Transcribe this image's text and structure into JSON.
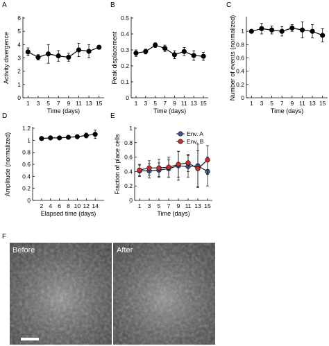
{
  "chart_data": [
    {
      "panel": "A",
      "type": "line",
      "ylabel": "Activity divergence",
      "xlabel": "Time (days)",
      "ylim": [
        0,
        6
      ],
      "yticks": [
        "0",
        "1",
        "2",
        "3",
        "4",
        "5",
        "6"
      ],
      "xlim": [
        0,
        16
      ],
      "xticks": [
        "1",
        "3",
        "5",
        "7",
        "9",
        "11",
        "13",
        "15"
      ],
      "x": [
        1,
        3,
        5,
        7,
        9,
        11,
        13,
        15
      ],
      "series": [
        {
          "values": [
            3.45,
            3.05,
            3.3,
            3.15,
            3.05,
            3.6,
            3.5,
            3.8
          ],
          "err": [
            0.3,
            0.2,
            0.7,
            0.4,
            0.3,
            0.5,
            0.5,
            0.15
          ]
        }
      ]
    },
    {
      "panel": "B",
      "type": "line",
      "ylabel": "Peak displacement",
      "xlabel": "Time (days)",
      "ylim": [
        0,
        0.5
      ],
      "yticks": [
        "0",
        "0.1",
        "0.2",
        "0.3",
        "0.4",
        "0.5"
      ],
      "xlim": [
        0,
        16
      ],
      "xticks": [
        "1",
        "3",
        "5",
        "7",
        "9",
        "11",
        "13",
        "15"
      ],
      "x": [
        1,
        3,
        5,
        7,
        9,
        11,
        13,
        15
      ],
      "series": [
        {
          "values": [
            0.28,
            0.29,
            0.33,
            0.31,
            0.27,
            0.29,
            0.265,
            0.26
          ],
          "err": [
            0.02,
            0.015,
            0.015,
            0.02,
            0.025,
            0.025,
            0.03,
            0.025
          ]
        }
      ]
    },
    {
      "panel": "C",
      "type": "line",
      "ylabel": "Number of events (normalized)",
      "xlabel": "Time (days)",
      "ylim": [
        0,
        1.2
      ],
      "yticks": [
        "0",
        "0.2",
        "0.4",
        "0.6",
        "0.8",
        "1"
      ],
      "xlim": [
        0,
        16
      ],
      "xticks": [
        "1",
        "3",
        "5",
        "7",
        "9",
        "11",
        "13",
        "15"
      ],
      "x": [
        1,
        3,
        5,
        7,
        9,
        11,
        13,
        15
      ],
      "series": [
        {
          "values": [
            1.0,
            1.04,
            1.02,
            1.0,
            1.05,
            1.02,
            1.0,
            0.94
          ],
          "err": [
            0.0,
            0.08,
            0.06,
            0.07,
            0.05,
            0.12,
            0.1,
            0.1
          ]
        }
      ]
    },
    {
      "panel": "D",
      "type": "line",
      "ylabel": "Amplitude (normalized)",
      "xlabel": "Elapsed time (days)",
      "ylim": [
        0,
        1.2
      ],
      "yticks": [
        "0",
        "0.2",
        "0.4",
        "0.6",
        "0.8",
        "1",
        "1.2"
      ],
      "xlim": [
        0,
        16
      ],
      "xticks": [
        "2",
        "4",
        "6",
        "8",
        "10",
        "12",
        "14"
      ],
      "x": [
        2,
        4,
        6,
        8,
        10,
        12,
        14
      ],
      "series": [
        {
          "values": [
            1.03,
            1.04,
            1.04,
            1.05,
            1.06,
            1.08,
            1.1
          ],
          "err": [
            0.01,
            0.01,
            0.015,
            0.015,
            0.02,
            0.04,
            0.07
          ]
        }
      ]
    },
    {
      "panel": "E",
      "type": "line",
      "ylabel": "Fraction of place cells",
      "xlabel": "Time (days)",
      "ylim": [
        0,
        1
      ],
      "yticks": [
        "0",
        "0.2",
        "0.4",
        "0.6",
        "0.8",
        "1"
      ],
      "xlim": [
        0,
        16
      ],
      "xticks": [
        "1",
        "3",
        "5",
        "7",
        "9",
        "11",
        "13",
        "15"
      ],
      "x": [
        1,
        3,
        5,
        7,
        9,
        11,
        13,
        15
      ],
      "legend_position": "top-right",
      "series": [
        {
          "name": "Env. A",
          "color": "#3a5a9c",
          "values": [
            0.41,
            0.41,
            0.42,
            0.44,
            0.48,
            0.47,
            0.48,
            0.4
          ],
          "err": [
            0.08,
            0.1,
            0.1,
            0.12,
            0.2,
            0.15,
            0.3,
            0.2
          ]
        },
        {
          "name": "Env. B",
          "color": "#d42a2a",
          "values": [
            0.42,
            0.45,
            0.45,
            0.46,
            0.5,
            0.52,
            0.44,
            0.56
          ],
          "err": [
            0.08,
            0.1,
            0.12,
            0.14,
            0.18,
            0.12,
            0.25,
            0.2
          ]
        }
      ]
    }
  ],
  "panel_labels": [
    "A",
    "B",
    "C",
    "D",
    "E",
    "F"
  ],
  "images": {
    "before_label": "Before",
    "after_label": "After"
  }
}
